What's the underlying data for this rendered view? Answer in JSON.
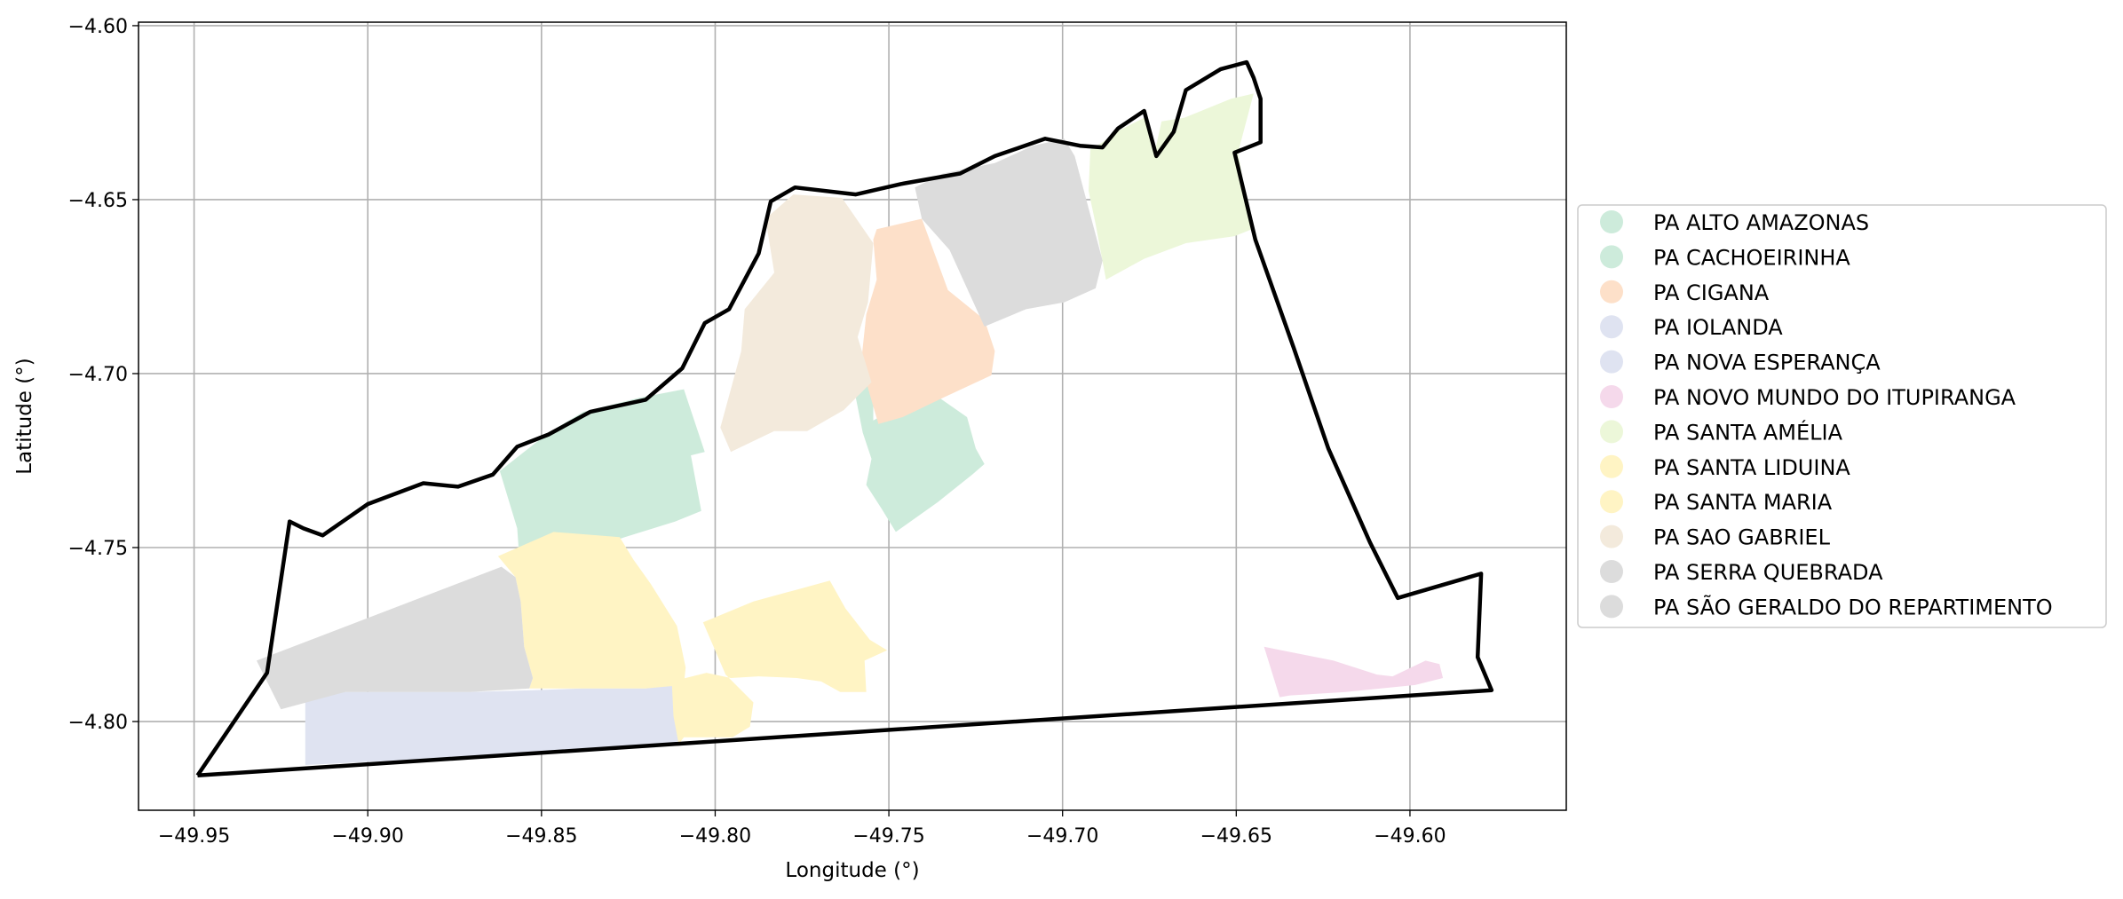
{
  "chart_data": {
    "type": "map",
    "xlabel": "Longitude (°)",
    "ylabel": "Latitude (°)",
    "xlim": [
      -49.966,
      -49.555
    ],
    "ylim": [
      -4.8255,
      -4.599
    ],
    "grid": true,
    "x_ticks": [
      -49.95,
      -49.9,
      -49.85,
      -49.8,
      -49.75,
      -49.7,
      -49.65,
      -49.6
    ],
    "x_tick_labels": [
      "−49.95",
      "−49.90",
      "−49.85",
      "−49.80",
      "−49.75",
      "−49.70",
      "−49.65",
      "−49.60"
    ],
    "y_ticks": [
      -4.6,
      -4.65,
      -4.7,
      -4.75,
      -4.8
    ],
    "y_tick_labels": [
      "−4.60",
      "−4.65",
      "−4.70",
      "−4.75",
      "−4.80"
    ],
    "legend_position": "right",
    "legend": [
      {
        "name": "PA ALTO AMAZONAS",
        "color": "#cdebdb"
      },
      {
        "name": "PA CACHOEIRINHA",
        "color": "#cdebdb"
      },
      {
        "name": "PA CIGANA",
        "color": "#fde0c9"
      },
      {
        "name": "PA IOLANDA",
        "color": "#dfe3f1"
      },
      {
        "name": "PA NOVA ESPERANÇA",
        "color": "#dfe3f1"
      },
      {
        "name": "PA NOVO MUNDO DO ITUPIRANGA",
        "color": "#f5d9eb"
      },
      {
        "name": "PA SANTA AMÉLIA",
        "color": "#ecf7d9"
      },
      {
        "name": "PA SANTA LIDUINA",
        "color": "#fff4c4"
      },
      {
        "name": "PA SANTA MARIA",
        "color": "#fff4c4"
      },
      {
        "name": "PA SAO GABRIEL",
        "color": "#f3eadc"
      },
      {
        "name": "PA SERRA QUEBRADA",
        "color": "#dcdcdc"
      },
      {
        "name": "PA SÃO GERALDO DO REPARTIMENTO",
        "color": "#dcdcdc"
      }
    ],
    "boundary": [
      [
        -49.949,
        -4.8155
      ],
      [
        -49.929,
        -4.786
      ],
      [
        -49.9225,
        -4.7425
      ],
      [
        -49.9185,
        -4.7445
      ],
      [
        -49.913,
        -4.7465
      ],
      [
        -49.9,
        -4.7375
      ],
      [
        -49.884,
        -4.7315
      ],
      [
        -49.874,
        -4.7325
      ],
      [
        -49.864,
        -4.729
      ],
      [
        -49.857,
        -4.721
      ],
      [
        -49.848,
        -4.7175
      ],
      [
        -49.836,
        -4.711
      ],
      [
        -49.82,
        -4.7075
      ],
      [
        -49.8095,
        -4.6985
      ],
      [
        -49.803,
        -4.6855
      ],
      [
        -49.796,
        -4.6815
      ],
      [
        -49.7875,
        -4.6655
      ],
      [
        -49.784,
        -4.6505
      ],
      [
        -49.777,
        -4.6465
      ],
      [
        -49.7595,
        -4.6485
      ],
      [
        -49.7465,
        -4.6455
      ],
      [
        -49.7295,
        -4.6425
      ],
      [
        -49.7195,
        -4.6375
      ],
      [
        -49.705,
        -4.6325
      ],
      [
        -49.695,
        -4.6345
      ],
      [
        -49.6885,
        -4.635
      ],
      [
        -49.684,
        -4.6295
      ],
      [
        -49.6765,
        -4.6245
      ],
      [
        -49.673,
        -4.6375
      ],
      [
        -49.668,
        -4.6305
      ],
      [
        -49.6645,
        -4.6185
      ],
      [
        -49.6545,
        -4.6125
      ],
      [
        -49.647,
        -4.6105
      ],
      [
        -49.645,
        -4.615
      ],
      [
        -49.643,
        -4.621
      ],
      [
        -49.643,
        -4.6335
      ],
      [
        -49.6505,
        -4.6365
      ],
      [
        -49.6445,
        -4.6615
      ],
      [
        -49.6335,
        -4.6925
      ],
      [
        -49.6235,
        -4.7215
      ],
      [
        -49.6115,
        -4.7485
      ],
      [
        -49.6035,
        -4.7645
      ],
      [
        -49.5795,
        -4.7575
      ],
      [
        -49.5805,
        -4.7815
      ],
      [
        -49.5765,
        -4.791
      ],
      [
        -49.949,
        -4.8155
      ]
    ],
    "regions": [
      {
        "name": "PA ALTO AMAZONAS",
        "points": [
          [
            -49.862,
            -4.728
          ],
          [
            -49.848,
            -4.717
          ],
          [
            -49.838,
            -4.711
          ],
          [
            -49.822,
            -4.707
          ],
          [
            -49.809,
            -4.7045
          ],
          [
            -49.803,
            -4.7225
          ],
          [
            -49.807,
            -4.7235
          ],
          [
            -49.804,
            -4.7395
          ],
          [
            -49.8115,
            -4.7425
          ],
          [
            -49.826,
            -4.747
          ],
          [
            -49.848,
            -4.7545
          ],
          [
            -49.856,
            -4.7585
          ],
          [
            -49.857,
            -4.7445
          ]
        ]
      },
      {
        "name": "PA CACHOEIRINHA",
        "points": [
          [
            -49.759,
            -4.6955
          ],
          [
            -49.7545,
            -4.701
          ],
          [
            -49.7545,
            -4.7135
          ],
          [
            -49.739,
            -4.7045
          ],
          [
            -49.7275,
            -4.7125
          ],
          [
            -49.725,
            -4.7215
          ],
          [
            -49.7225,
            -4.726
          ],
          [
            -49.726,
            -4.729
          ],
          [
            -49.736,
            -4.737
          ],
          [
            -49.748,
            -4.7455
          ],
          [
            -49.752,
            -4.739
          ],
          [
            -49.7565,
            -4.732
          ],
          [
            -49.755,
            -4.7245
          ],
          [
            -49.7575,
            -4.717
          ],
          [
            -49.7595,
            -4.707
          ],
          [
            -49.7575,
            -4.7005
          ]
        ]
      },
      {
        "name": "PA CIGANA",
        "points": [
          [
            -49.7535,
            -4.6585
          ],
          [
            -49.7405,
            -4.6555
          ],
          [
            -49.733,
            -4.676
          ],
          [
            -49.7225,
            -4.6845
          ],
          [
            -49.7195,
            -4.6935
          ],
          [
            -49.7205,
            -4.7005
          ],
          [
            -49.7345,
            -4.707
          ],
          [
            -49.746,
            -4.7125
          ],
          [
            -49.753,
            -4.7145
          ],
          [
            -49.7555,
            -4.706
          ],
          [
            -49.758,
            -4.697
          ],
          [
            -49.7565,
            -4.683
          ],
          [
            -49.7535,
            -4.673
          ],
          [
            -49.7545,
            -4.6615
          ]
        ]
      },
      {
        "name": "PA IOLANDA",
        "points": [
          [
            -49.918,
            -4.7935
          ],
          [
            -49.9065,
            -4.7915
          ],
          [
            -49.89,
            -4.7915
          ],
          [
            -49.8705,
            -4.7915
          ],
          [
            -49.8525,
            -4.791
          ],
          [
            -49.8385,
            -4.7905
          ],
          [
            -49.82,
            -4.7905
          ],
          [
            -49.808,
            -4.789
          ],
          [
            -49.8075,
            -4.7945
          ],
          [
            -49.8105,
            -4.8065
          ],
          [
            -49.8175,
            -4.8075
          ],
          [
            -49.918,
            -4.8125
          ]
        ]
      },
      {
        "name": "PA NOVO MUNDO DO ITUPIRANGA",
        "points": [
          [
            -49.642,
            -4.7785
          ],
          [
            -49.637,
            -4.7795
          ],
          [
            -49.622,
            -4.7825
          ],
          [
            -49.6095,
            -4.7865
          ],
          [
            -49.605,
            -4.787
          ],
          [
            -49.5955,
            -4.7825
          ],
          [
            -49.5915,
            -4.7835
          ],
          [
            -49.5905,
            -4.7875
          ],
          [
            -49.5985,
            -4.7895
          ],
          [
            -49.6185,
            -4.7915
          ],
          [
            -49.6345,
            -4.7925
          ],
          [
            -49.6375,
            -4.793
          ]
        ]
      },
      {
        "name": "PA SANTA AMÉLIA",
        "points": [
          [
            -49.692,
            -4.6355
          ],
          [
            -49.6885,
            -4.6335
          ],
          [
            -49.6845,
            -4.6305
          ],
          [
            -49.6765,
            -4.6265
          ],
          [
            -49.6735,
            -4.6365
          ],
          [
            -49.6715,
            -4.6275
          ],
          [
            -49.665,
            -4.6265
          ],
          [
            -49.6515,
            -4.621
          ],
          [
            -49.645,
            -4.6195
          ],
          [
            -49.6495,
            -4.6365
          ],
          [
            -49.6455,
            -4.6585
          ],
          [
            -49.6505,
            -4.6605
          ],
          [
            -49.6575,
            -4.6615
          ],
          [
            -49.6645,
            -4.6625
          ],
          [
            -49.6765,
            -4.667
          ],
          [
            -49.6875,
            -4.673
          ],
          [
            -49.689,
            -4.665
          ],
          [
            -49.6905,
            -4.657
          ],
          [
            -49.6925,
            -4.6475
          ]
        ]
      },
      {
        "name": "PA SANTA LIDUINA",
        "points": [
          [
            -49.8465,
            -4.7455
          ],
          [
            -49.8625,
            -4.7525
          ],
          [
            -49.8575,
            -4.7585
          ],
          [
            -49.856,
            -4.7655
          ],
          [
            -49.855,
            -4.7785
          ],
          [
            -49.8525,
            -4.7875
          ],
          [
            -49.8535,
            -4.7905
          ],
          [
            -49.8385,
            -4.7905
          ],
          [
            -49.82,
            -4.7905
          ],
          [
            -49.809,
            -4.7895
          ],
          [
            -49.8085,
            -4.7845
          ],
          [
            -49.811,
            -4.7725
          ],
          [
            -49.8185,
            -4.7605
          ],
          [
            -49.8235,
            -4.7535
          ],
          [
            -49.8275,
            -4.747
          ]
        ]
      },
      {
        "name": "PA SANTA MARIA",
        "points": [
          [
            -49.8125,
            -4.7885
          ],
          [
            -49.8025,
            -4.786
          ],
          [
            -49.7955,
            -4.7875
          ],
          [
            -49.7875,
            -4.787
          ],
          [
            -49.7765,
            -4.7875
          ],
          [
            -49.7695,
            -4.7885
          ],
          [
            -49.764,
            -4.7915
          ],
          [
            -49.7565,
            -4.7915
          ],
          [
            -49.757,
            -4.7825
          ],
          [
            -49.7505,
            -4.7795
          ],
          [
            -49.7555,
            -4.7765
          ],
          [
            -49.7625,
            -4.7675
          ],
          [
            -49.767,
            -4.7595
          ],
          [
            -49.789,
            -4.7655
          ],
          [
            -49.8035,
            -4.7715
          ],
          [
            -49.797,
            -4.7865
          ],
          [
            -49.789,
            -4.7945
          ],
          [
            -49.79,
            -4.8015
          ],
          [
            -49.795,
            -4.8045
          ],
          [
            -49.809,
            -4.8045
          ],
          [
            -49.8105,
            -4.8065
          ],
          [
            -49.812,
            -4.7985
          ]
        ]
      },
      {
        "name": "PA SAO GABRIEL",
        "points": [
          [
            -49.7855,
            -4.6555
          ],
          [
            -49.783,
            -4.671
          ],
          [
            -49.7915,
            -4.6815
          ],
          [
            -49.7925,
            -4.6935
          ],
          [
            -49.7955,
            -4.7045
          ],
          [
            -49.7985,
            -4.7155
          ],
          [
            -49.7955,
            -4.7225
          ],
          [
            -49.783,
            -4.7165
          ],
          [
            -49.7735,
            -4.7165
          ],
          [
            -49.763,
            -4.7105
          ],
          [
            -49.755,
            -4.7025
          ],
          [
            -49.759,
            -4.6895
          ],
          [
            -49.756,
            -4.6795
          ],
          [
            -49.7545,
            -4.6625
          ],
          [
            -49.7635,
            -4.6495
          ],
          [
            -49.7775,
            -4.6485
          ]
        ]
      },
      {
        "name": "PA SERRA QUEBRADA",
        "points": [
          [
            -49.7425,
            -4.6465
          ],
          [
            -49.7345,
            -4.6425
          ],
          [
            -49.7195,
            -4.6395
          ],
          [
            -49.7085,
            -4.6345
          ],
          [
            -49.6995,
            -4.6325
          ],
          [
            -49.6965,
            -4.6375
          ],
          [
            -49.6925,
            -4.6525
          ],
          [
            -49.6885,
            -4.6675
          ],
          [
            -49.6905,
            -4.6755
          ],
          [
            -49.6995,
            -4.6795
          ],
          [
            -49.7105,
            -4.6815
          ],
          [
            -49.7225,
            -4.6865
          ],
          [
            -49.7275,
            -4.6755
          ],
          [
            -49.7325,
            -4.6645
          ],
          [
            -49.7405,
            -4.6555
          ]
        ]
      },
      {
        "name": "PA SÃO GERALDO DO REPARTIMENTO",
        "points": [
          [
            -49.932,
            -4.7825
          ],
          [
            -49.925,
            -4.7965
          ],
          [
            -49.9065,
            -4.7915
          ],
          [
            -49.89,
            -4.7915
          ],
          [
            -49.8705,
            -4.7915
          ],
          [
            -49.8535,
            -4.7905
          ],
          [
            -49.8525,
            -4.7875
          ],
          [
            -49.855,
            -4.7785
          ],
          [
            -49.856,
            -4.7655
          ],
          [
            -49.8575,
            -4.7585
          ],
          [
            -49.8615,
            -4.7555
          ]
        ]
      }
    ]
  }
}
